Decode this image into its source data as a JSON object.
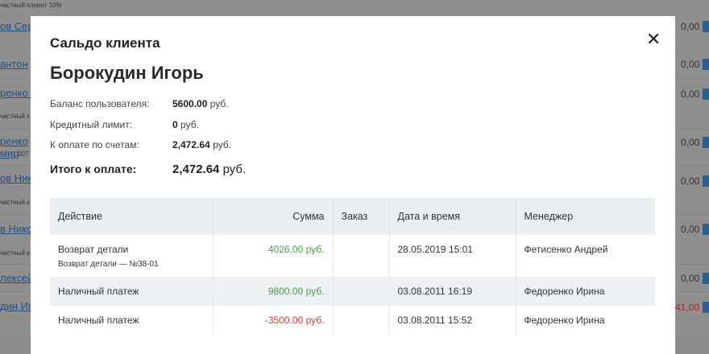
{
  "background": {
    "rows": [
      {
        "name": "ов Сер",
        "sub": "частный клиент 10%",
        "value": "0,00"
      },
      {
        "name": "антон",
        "sub": "",
        "value": "0,00"
      },
      {
        "name": "ренко С",
        "sub": "частный к",
        "value": "0,00"
      },
      {
        "name": "ренко мир",
        "sub": "007",
        "value": "0,00"
      },
      {
        "name": "ов Нико",
        "sub": "частный к",
        "value": "0,00"
      },
      {
        "name": "в Нико",
        "sub": "частный к",
        "value": "0,00"
      },
      {
        "name": "лексей",
        "sub": "",
        "value": "0,00"
      },
      {
        "name": "дин Иг",
        "sub": "",
        "value": "41,00"
      }
    ]
  },
  "modal": {
    "title": "Сальдо клиента",
    "close_icon": "close-icon",
    "client_name": "Борокудин Игорь",
    "balance_label": "Баланс пользователя:",
    "balance_value": "5600.00",
    "balance_unit": "руб.",
    "credit_label": "Кредитный лимит:",
    "credit_value": "0",
    "credit_unit": "руб.",
    "invoices_label": "К оплате по счетам:",
    "invoices_value": "2,472.64",
    "invoices_unit": "руб.",
    "total_label": "Итого к оплате:",
    "total_value": "2,472.64",
    "total_unit": "руб.",
    "colors": {
      "positive": "#4a9a4a",
      "negative": "#d03a3a"
    },
    "table": {
      "headers": [
        "Действие",
        "Сумма",
        "Заказ",
        "Дата и время",
        "Менеджер"
      ],
      "rows": [
        {
          "action": "Возврат детали",
          "action_sub": "Возврат детали — №38-01",
          "amount": "4026.00 руб.",
          "order": "",
          "datetime": "28.05.2019 15:01",
          "manager": "Фетисенко Андрей",
          "sign": "positive"
        },
        {
          "action": "Наличный платеж",
          "action_sub": "",
          "amount": "9800.00 руб.",
          "order": "",
          "datetime": "03.08.2011 16:19",
          "manager": "Федоренко Ирина",
          "sign": "positive"
        },
        {
          "action": "Наличный платеж",
          "action_sub": "",
          "amount": "-3500.00 руб.",
          "order": "",
          "datetime": "03.08.2011 15:52",
          "manager": "Федоренко Ирина",
          "sign": "negative"
        }
      ]
    }
  }
}
